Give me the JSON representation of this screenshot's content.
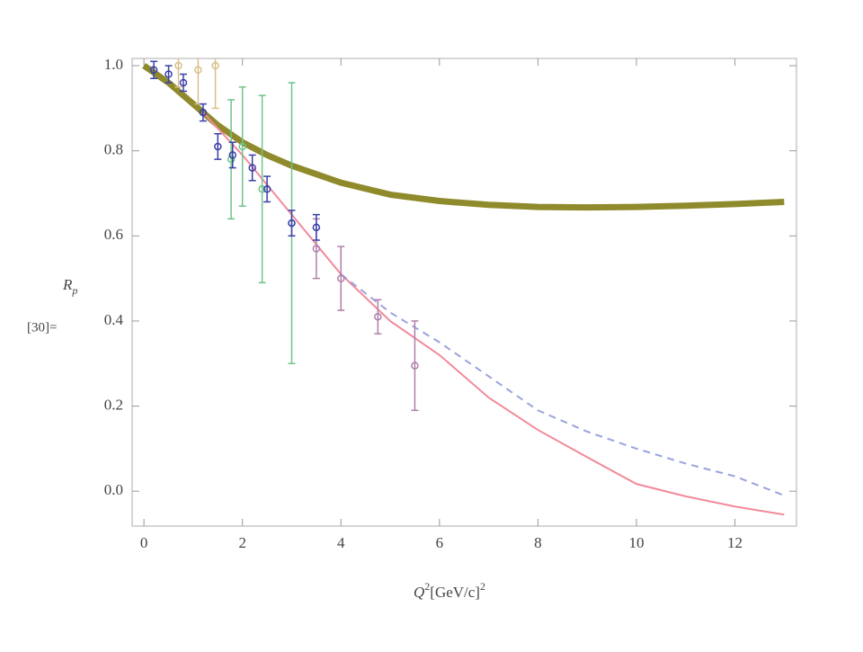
{
  "chart_data": {
    "type": "scatter",
    "ylabel": "R",
    "ylabel_sub": "p",
    "xlabel": [
      "Q",
      "2",
      "[GeV/c]",
      "2"
    ],
    "annotation": "[30]=",
    "xlim": [
      -0.24,
      13.25
    ],
    "ylim": [
      -0.082,
      1.017
    ],
    "xticks": [
      0,
      2,
      4,
      6,
      8,
      10,
      12
    ],
    "yticks": [
      {
        "value": 0.0,
        "label": "0.0"
      },
      0.2,
      0.4,
      0.6,
      0.8,
      {
        "value": 1.0,
        "label": "1.0"
      }
    ],
    "series": [
      {
        "type": "line",
        "linestyle": "solid",
        "color": "#8f8a2c",
        "x": [
          0,
          0.5,
          1,
          1.5,
          2,
          2.5,
          3,
          4,
          5,
          6,
          7,
          8,
          9,
          10,
          11,
          12,
          13
        ],
        "values": [
          1.0,
          0.96,
          0.91,
          0.86,
          0.82,
          0.79,
          0.765,
          0.725,
          0.697,
          0.682,
          0.673,
          0.668,
          0.667,
          0.668,
          0.671,
          0.675,
          0.68
        ]
      },
      {
        "type": "line",
        "linestyle": "solid",
        "color": "#f28a9a",
        "x": [
          1.2,
          2,
          3,
          4,
          5,
          6,
          7,
          8,
          9,
          10,
          11,
          12,
          13
        ],
        "values": [
          0.89,
          0.79,
          0.65,
          0.51,
          0.4,
          0.32,
          0.22,
          0.144,
          0.08,
          0.017,
          -0.012,
          -0.036,
          -0.055
        ]
      },
      {
        "type": "line",
        "linestyle": "dashed",
        "color": "#9aa3dd",
        "x": [
          4,
          5,
          6,
          7,
          8,
          9,
          10,
          11,
          12,
          13
        ],
        "values": [
          0.51,
          0.42,
          0.35,
          0.27,
          0.19,
          0.14,
          0.1,
          0.065,
          0.035,
          -0.01
        ]
      },
      {
        "type": "points",
        "color": "#b07fa8",
        "x": [
          3.5,
          4,
          4.75,
          5.5
        ],
        "values": [
          0.57,
          0.5,
          0.41,
          0.295
        ],
        "errors": [
          0.07,
          0.075,
          0.04,
          0.105
        ]
      },
      {
        "type": "points",
        "color": "#6fc48a",
        "x": [
          1.77,
          2,
          2.4,
          3.0
        ],
        "values": [
          0.78,
          0.81,
          0.71,
          0.63
        ],
        "errors": [
          0.14,
          0.14,
          0.22,
          0.33
        ]
      },
      {
        "type": "points",
        "color": "#d9c08a",
        "x": [
          0.7,
          1.1,
          1.45
        ],
        "values": [
          1.0,
          0.99,
          1.0
        ],
        "errors": [
          0.05,
          0.08,
          0.1
        ]
      },
      {
        "type": "points",
        "color": "#3a3fa8",
        "x": [
          0.2,
          0.5,
          0.8,
          1.2,
          1.5,
          1.8,
          2.2,
          2.5,
          3.0,
          3.5
        ],
        "values": [
          0.99,
          0.98,
          0.96,
          0.89,
          0.81,
          0.79,
          0.76,
          0.71,
          0.63,
          0.62
        ],
        "errors": [
          0.02,
          0.02,
          0.02,
          0.02,
          0.03,
          0.03,
          0.03,
          0.03,
          0.03,
          0.03
        ]
      }
    ]
  }
}
